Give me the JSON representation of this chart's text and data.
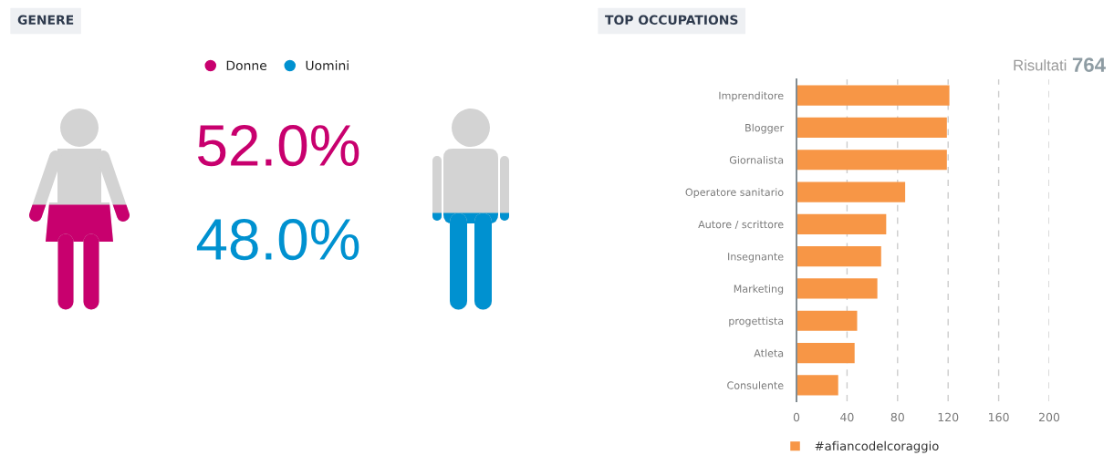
{
  "chart_data": [
    {
      "type": "other",
      "title": "GENERE",
      "series": [
        {
          "name": "Donne",
          "color": "#c8006e",
          "values": [
            52.0
          ],
          "value_labels": [
            "52.0%"
          ]
        },
        {
          "name": "Uomini",
          "color": "#0091d0",
          "values": [
            48.0
          ],
          "value_labels": [
            "48.0%"
          ]
        }
      ],
      "legend": "top"
    },
    {
      "type": "bar",
      "orientation": "horizontal",
      "title": "TOP OCCUPATIONS",
      "annotations": [
        "Risultati",
        "764"
      ],
      "categories": [
        "Imprenditore",
        "Blogger",
        "Giornalista",
        "Operatore sanitario",
        "Autore / scrittore",
        "Insegnante",
        "Marketing",
        "progettista",
        "Atleta",
        "Consulente"
      ],
      "series": [
        {
          "name": "#afiancodelcoraggio",
          "color": "#f79646",
          "values": [
            121,
            119,
            119,
            86,
            71,
            67,
            64,
            48,
            46,
            33
          ]
        }
      ],
      "xlim": [
        0,
        200
      ],
      "xticks": [
        0,
        40,
        80,
        120,
        160,
        200
      ],
      "grid": "x",
      "legend": "bottom"
    }
  ]
}
